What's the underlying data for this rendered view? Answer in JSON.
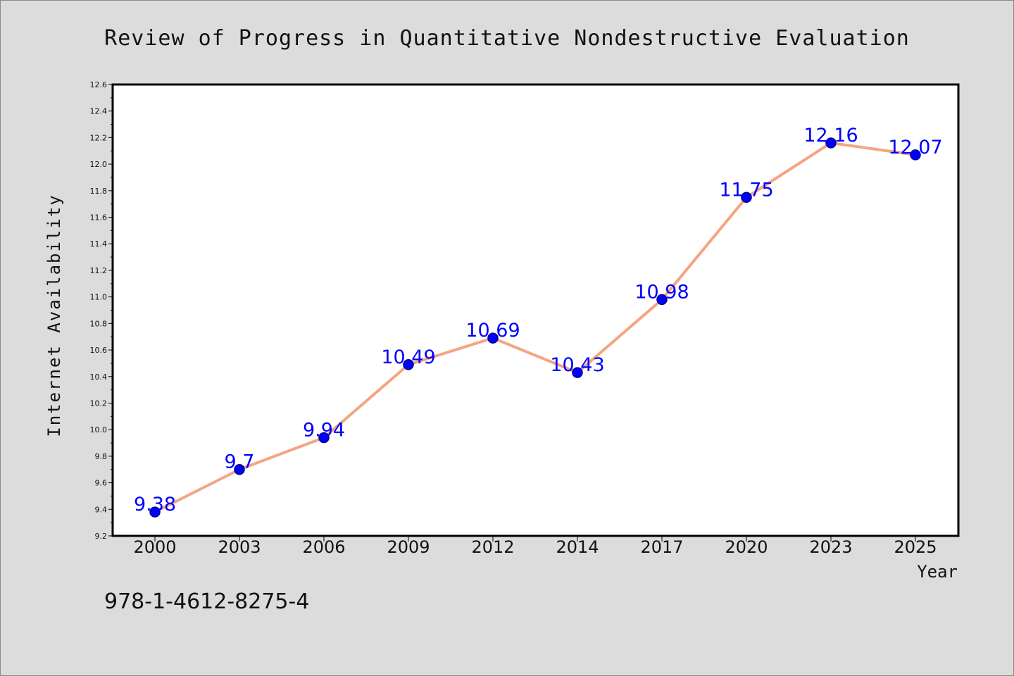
{
  "chart_data": {
    "type": "line",
    "title": "Review of Progress in Quantitative Nondestructive Evaluation",
    "xlabel": "Year",
    "ylabel": "Internet Availability",
    "categories": [
      "2000",
      "2003",
      "2006",
      "2009",
      "2012",
      "2014",
      "2017",
      "2020",
      "2023",
      "2025"
    ],
    "series": [
      {
        "values": [
          9.38,
          9.7,
          9.94,
          10.49,
          10.69,
          10.43,
          10.98,
          11.75,
          12.16,
          12.07
        ]
      }
    ],
    "data_labels": [
      "9.38",
      "9.7",
      "9.94",
      "10.49",
      "10.69",
      "10.43",
      "10.98",
      "11.75",
      "12.16",
      "12.07"
    ],
    "ylim": [
      9.2,
      12.6
    ],
    "yticks": [
      "9.2",
      "9.4",
      "9.6",
      "9.8",
      "10.0",
      "10.2",
      "10.4",
      "10.6",
      "10.8",
      "11.0",
      "11.2",
      "11.4",
      "11.6",
      "11.8",
      "12.0",
      "12.2",
      "12.4",
      "12.6"
    ],
    "grid": false,
    "legend": "none",
    "colors": {
      "line": "#f4a582",
      "marker": "#0000ff",
      "marker_edge": "#00008b",
      "label": "#0000ff",
      "background": "#dcdcdc",
      "plot_area": "#ffffff"
    }
  },
  "annotation": {
    "isbn": "978-1-4612-8275-4"
  }
}
